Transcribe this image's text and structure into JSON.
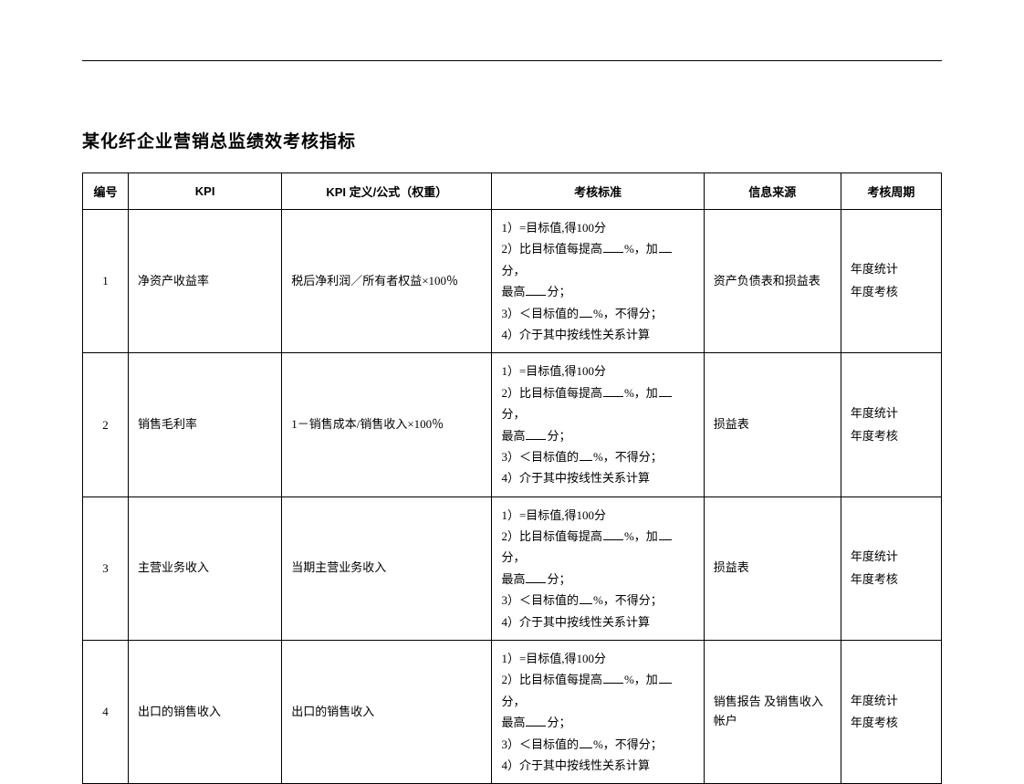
{
  "title": "某化纤企业营销总监绩效考核指标",
  "table": {
    "columns": [
      "编号",
      "KPI",
      "KPI 定义/公式（权重）",
      "考核标准",
      "信息来源",
      "考核周期"
    ],
    "std_lines": {
      "l1": "1）=目标值,得100分",
      "l2a": "2）比目标值每提高",
      "l2b": "%，加",
      "l2c": "分，",
      "l3a": "最高",
      "l3b": "分；",
      "l4a": "3）＜目标值的",
      "l4b": "%，不得分；",
      "l5": "4）介于其中按线性关系计算"
    },
    "cycle_text": {
      "a": "年度统计",
      "b": "年度考核"
    },
    "rows": [
      {
        "no": "1",
        "kpi": "净资产收益率",
        "def": "税后净利润／所有者权益×100％",
        "src": "资产负债表和损益表"
      },
      {
        "no": "2",
        "kpi": "销售毛利率",
        "def": "1－销售成本/销售收入×100％",
        "src": "损益表"
      },
      {
        "no": "3",
        "kpi": "主营业务收入",
        "def": "当期主营业务收入",
        "src": "损益表"
      },
      {
        "no": "4",
        "kpi": "出口的销售收入",
        "def": "出口的销售收入",
        "src": "销售报告 及销售收入帐户"
      }
    ]
  }
}
